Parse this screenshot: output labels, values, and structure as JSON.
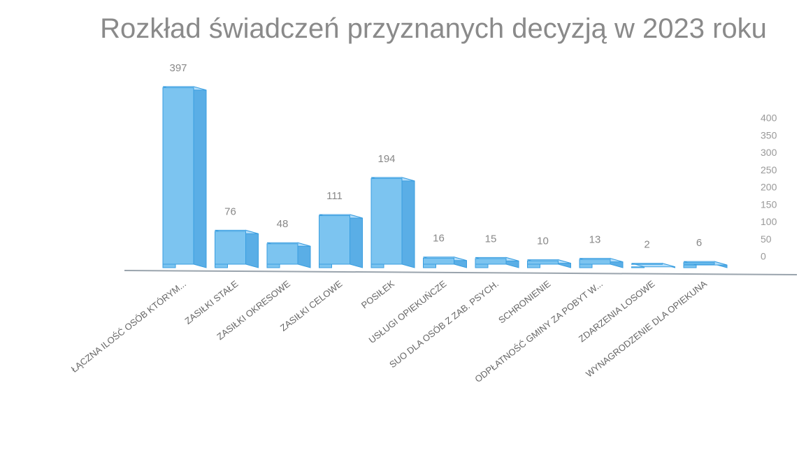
{
  "chart_data": {
    "type": "bar3d",
    "title": "Rozkład świadczeń przyznanych decyzją w 2023 roku",
    "categories": [
      "ŁĄCZNA ILOŚĆ OSÓB KTÓRYM...",
      "ZASIŁKI STAŁE",
      "ZASIŁKI OKRESOWE",
      "ZASIŁKI CELOWE",
      "POSIŁEK",
      "USŁUGI OPIEKUŃCZE",
      "SUO DLA OSÓB Z ZAB. PSYCH.",
      "SCHRONIENIE",
      "ODPŁATNOŚĆ GMINY ZA POBYT W...",
      "ZDARZENIA LOSOWE",
      "WYNAGRODZENIE DLA OPIEKUNA"
    ],
    "values": [
      397,
      76,
      48,
      111,
      194,
      16,
      15,
      10,
      13,
      2,
      6
    ],
    "color": "#7cc4f0",
    "ylim": [
      0,
      400
    ],
    "yticks": [
      0,
      50,
      100,
      150,
      200,
      250,
      300,
      350,
      400
    ],
    "grid": false
  }
}
